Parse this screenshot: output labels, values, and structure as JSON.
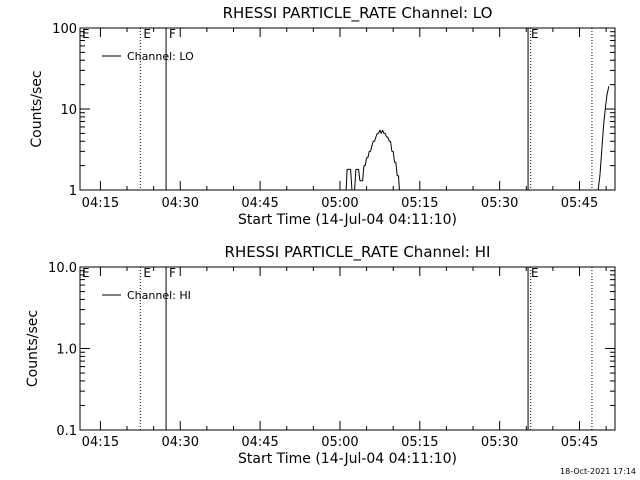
{
  "chart_data": [
    {
      "type": "line",
      "title": "RHESSI PARTICLE_RATE Channel: LO",
      "xlabel": "Start Time (14-Jul-04 04:11:10)",
      "ylabel": "Counts/sec",
      "y_scale": "log",
      "ylim": [
        1,
        100
      ],
      "xlim": [
        "04:11:10",
        "05:51:40"
      ],
      "x_ticks": [
        "04:15",
        "04:30",
        "04:45",
        "05:00",
        "05:15",
        "05:30",
        "05:45"
      ],
      "y_ticks": [
        "1",
        "10",
        "100"
      ],
      "legend": "top-left",
      "series": [
        {
          "name": "Channel: LO",
          "x": [
            "05:01:10",
            "05:01:20",
            "05:02:00",
            "05:02:15",
            "05:02:45",
            "05:03:00",
            "05:03:30",
            "05:03:45",
            "05:04:15",
            "05:04:30",
            "05:04:45",
            "05:05:00",
            "05:05:15",
            "05:05:30",
            "05:05:45",
            "05:06:00",
            "05:06:15",
            "05:06:30",
            "05:06:45",
            "05:07:00",
            "05:07:15",
            "05:07:30",
            "05:07:45",
            "05:08:00",
            "05:08:15",
            "05:08:30",
            "05:08:45",
            "05:09:00",
            "05:09:15",
            "05:09:30",
            "05:09:45",
            "05:10:00",
            "05:10:15",
            "05:10:30",
            "05:10:45",
            "05:11:00",
            "05:11:10",
            "05:48:30",
            "05:48:50",
            "05:49:10",
            "05:49:30",
            "05:49:50",
            "05:50:10",
            "05:50:30"
          ],
          "y": [
            1,
            1.8,
            1.8,
            1,
            1,
            1.8,
            1.8,
            1.3,
            1.3,
            2,
            2,
            2.5,
            2.5,
            3,
            3,
            3.5,
            4,
            4,
            4.5,
            5,
            5,
            5.5,
            5,
            5.5,
            5,
            5,
            4.5,
            4.5,
            4,
            4,
            3,
            3,
            2.2,
            2.2,
            1.5,
            1.5,
            1,
            1,
            1.5,
            3,
            6,
            10,
            15,
            19
          ]
        }
      ],
      "markers": [
        {
          "time": "04:22:30",
          "style": "dotted",
          "label": "E"
        },
        {
          "time": "04:27:20",
          "style": "solid",
          "label": "F"
        },
        {
          "time": "05:35:20",
          "style": "solid",
          "label": "E"
        },
        {
          "time": "05:35:50",
          "style": "dotted",
          "label": ""
        },
        {
          "time": "05:47:20",
          "style": "dotted",
          "label": ""
        }
      ],
      "corner_label": "E"
    },
    {
      "type": "line",
      "title": "RHESSI PARTICLE_RATE Channel: HI",
      "xlabel": "Start Time (14-Jul-04 04:11:10)",
      "ylabel": "Counts/sec",
      "y_scale": "log",
      "ylim": [
        0.1,
        10
      ],
      "xlim": [
        "04:11:10",
        "05:51:40"
      ],
      "x_ticks": [
        "04:15",
        "04:30",
        "04:45",
        "05:00",
        "05:15",
        "05:30",
        "05:45"
      ],
      "y_ticks": [
        "0.1",
        "1.0",
        "10.0"
      ],
      "legend": "top-left",
      "series": [
        {
          "name": "Channel: HI",
          "x": [],
          "y": []
        }
      ],
      "markers": [
        {
          "time": "04:22:30",
          "style": "dotted",
          "label": "E"
        },
        {
          "time": "04:27:20",
          "style": "solid",
          "label": "F"
        },
        {
          "time": "05:35:20",
          "style": "solid",
          "label": "E"
        },
        {
          "time": "05:35:50",
          "style": "dotted",
          "label": ""
        },
        {
          "time": "05:47:20",
          "style": "dotted",
          "label": ""
        }
      ],
      "corner_label": "E"
    }
  ],
  "footer": {
    "timestamp": "18-Oct-2021 17:14"
  }
}
